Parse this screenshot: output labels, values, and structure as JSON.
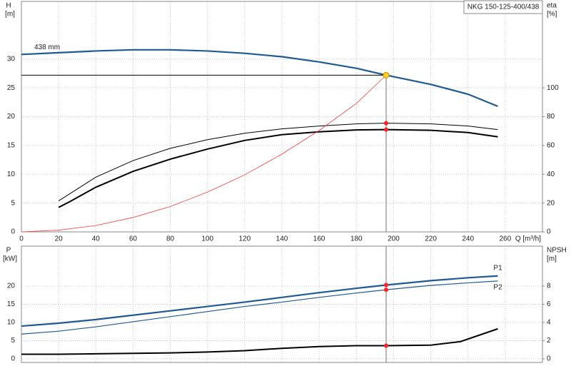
{
  "chart_data": [
    {
      "type": "line",
      "title": "NKG 150-125-400/438",
      "xlabel": "Q [m³/h]",
      "ylabel": "H",
      "yunit": "[m]",
      "y2label": "eta",
      "y2unit": "[%]",
      "xlim": [
        0,
        280
      ],
      "xticks": [
        0,
        20,
        40,
        60,
        80,
        100,
        120,
        140,
        160,
        180,
        200,
        220,
        240,
        260
      ],
      "show_xtick_labels": true,
      "ylim": [
        0,
        40
      ],
      "yticks": [
        0,
        5,
        10,
        15,
        20,
        25,
        30
      ],
      "y2lim": [
        0,
        160
      ],
      "y2ticks": [
        0,
        20,
        40,
        60,
        80,
        100
      ],
      "grid": true,
      "series_label_position": "start",
      "series": [
        {
          "name": "438 mm",
          "color": "#1f5a96",
          "line_width": 2.2,
          "axis": "y",
          "x": [
            0,
            20,
            40,
            60,
            80,
            100,
            120,
            140,
            160,
            180,
            196,
            220,
            240,
            256
          ],
          "values": [
            30.8,
            31.1,
            31.4,
            31.6,
            31.6,
            31.4,
            31.0,
            30.4,
            29.5,
            28.4,
            27.2,
            25.6,
            23.9,
            21.8
          ]
        },
        {
          "color": "#000000",
          "line_width": 1,
          "axis": "y2",
          "x": [
            20,
            40,
            60,
            80,
            100,
            120,
            140,
            160,
            180,
            196,
            220,
            240,
            256
          ],
          "values": [
            21.5,
            38,
            49.5,
            58,
            64,
            68.5,
            71.5,
            73.5,
            75,
            75.5,
            75,
            73.5,
            71
          ]
        },
        {
          "color": "#000000",
          "line_width": 2,
          "axis": "y2",
          "x": [
            20,
            26,
            40,
            60,
            80,
            100,
            120,
            140,
            160,
            180,
            196,
            220,
            240,
            256
          ],
          "values": [
            17,
            21,
            31,
            42,
            50.5,
            57.5,
            63.5,
            67.5,
            69.5,
            70.8,
            71,
            70.5,
            69,
            66
          ]
        },
        {
          "color": "#ff3b3b",
          "line_width": 0.8,
          "axis": "y",
          "x": [
            0,
            20,
            40,
            60,
            80,
            100,
            120,
            140,
            160,
            180,
            196
          ],
          "values": [
            0,
            0.3,
            1.1,
            2.5,
            4.4,
            6.9,
            9.9,
            13.5,
            17.6,
            22.3,
            27.2
          ]
        }
      ],
      "markers": [
        {
          "x": 196,
          "y": 27.2,
          "axis": "y",
          "color": "#ffd21f",
          "guide": true
        },
        {
          "x": 196,
          "y": 75.5,
          "axis": "y2",
          "color": "#ff2020"
        },
        {
          "x": 196,
          "y": 71,
          "axis": "y2",
          "color": "#ff2020"
        }
      ]
    },
    {
      "type": "line",
      "ylabel": "P",
      "yunit": "[kW]",
      "y2label": "NPSH",
      "y2unit": "[m]",
      "xlim": [
        0,
        280
      ],
      "xticks": [
        0,
        20,
        40,
        60,
        80,
        100,
        120,
        140,
        160,
        180,
        200,
        220,
        240,
        260
      ],
      "show_xtick_labels": false,
      "ylim": [
        -1,
        31
      ],
      "yticks": [
        0,
        5,
        10,
        15,
        20
      ],
      "y2lim": [
        -0.4,
        12.4
      ],
      "y2ticks": [
        0,
        2,
        4,
        6,
        8
      ],
      "grid": true,
      "series_label_position": "end",
      "vline_x": 196,
      "series": [
        {
          "name": "P1",
          "color": "#1f5a96",
          "line_width": 2.2,
          "axis": "y",
          "x": [
            0,
            20,
            40,
            60,
            80,
            100,
            120,
            140,
            160,
            180,
            196,
            220,
            240,
            256
          ],
          "values": [
            9,
            9.8,
            10.8,
            12,
            13.2,
            14.4,
            15.6,
            16.9,
            18.2,
            19.4,
            20.3,
            21.5,
            22.3,
            22.8
          ]
        },
        {
          "name": "P2",
          "color": "#1f5a96",
          "line_width": 1.2,
          "axis": "y",
          "x": [
            0,
            20,
            40,
            60,
            80,
            100,
            120,
            140,
            160,
            180,
            196,
            220,
            240,
            256
          ],
          "values": [
            6.8,
            7.6,
            8.8,
            10.2,
            11.6,
            13,
            14.4,
            15.6,
            16.9,
            18.1,
            19,
            20.2,
            20.9,
            21.4
          ]
        },
        {
          "color": "#000000",
          "line_width": 2,
          "axis": "y2",
          "x": [
            0,
            20,
            40,
            60,
            80,
            100,
            120,
            140,
            160,
            180,
            196,
            220,
            236,
            256
          ],
          "values": [
            0.5,
            0.5,
            0.55,
            0.6,
            0.65,
            0.75,
            0.9,
            1.15,
            1.35,
            1.45,
            1.45,
            1.5,
            1.9,
            3.3
          ]
        }
      ],
      "markers": [
        {
          "x": 196,
          "y": 20.3,
          "axis": "y",
          "color": "#ff2020"
        },
        {
          "x": 196,
          "y": 19,
          "axis": "y",
          "color": "#ff2020"
        },
        {
          "x": 196,
          "y": 1.45,
          "axis": "y2",
          "color": "#ff2020"
        }
      ]
    }
  ]
}
